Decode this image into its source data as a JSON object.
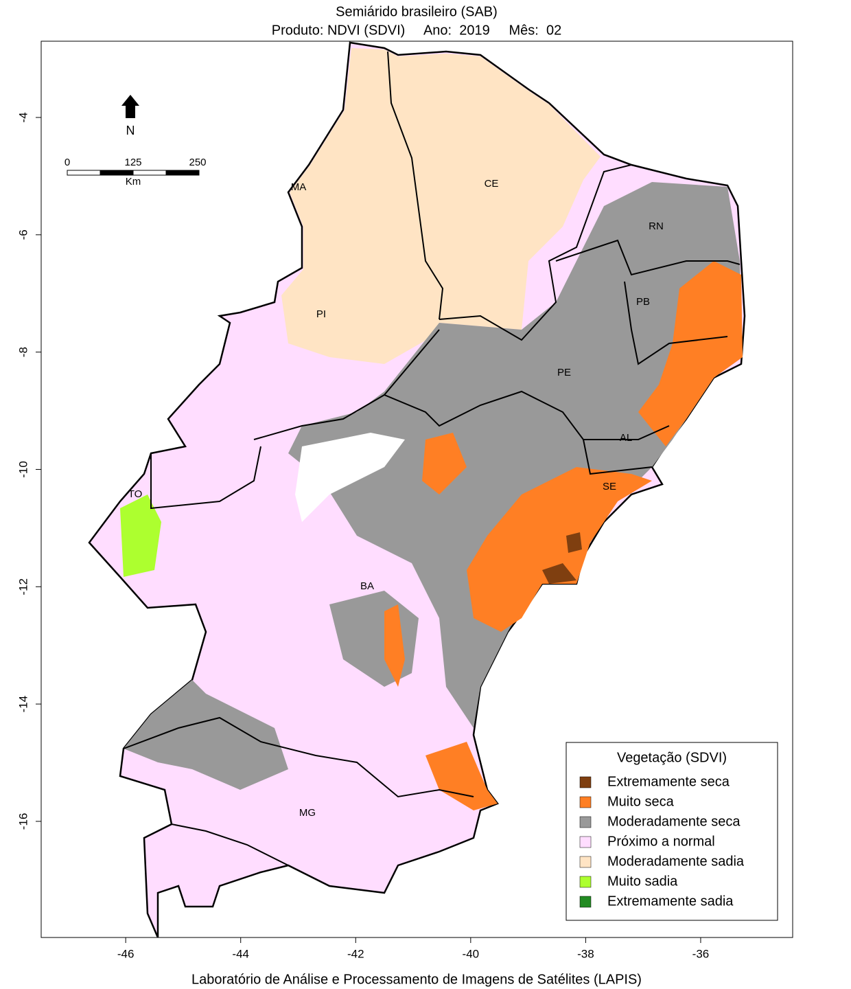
{
  "title": "Semiárido brasileiro (SAB)",
  "subtitle": "Produto: NDVI (SDVI)     Ano:  2019     Mês:  02",
  "xlim": [
    -47.47,
    -34.4
  ],
  "ylim": [
    -17.98,
    -2.7
  ],
  "xticks": [
    -46,
    -44,
    -42,
    -40,
    -38,
    -36
  ],
  "yticks": [
    -4,
    -6,
    -8,
    -10,
    -12,
    -14,
    -16
  ],
  "states": [
    "MA",
    "CE",
    "RN",
    "PB",
    "PI",
    "PE",
    "AL",
    "SE",
    "TO",
    "BA",
    "MG"
  ],
  "north": "N",
  "scalebar": {
    "labels": [
      0,
      125,
      250
    ],
    "unit": "Km"
  },
  "legend": {
    "title": "Vegetação (SDVI)",
    "items": [
      {
        "label": "Extremamente seca",
        "color": "#7f3f10"
      },
      {
        "label": "Muito seca",
        "color": "#ff7f24"
      },
      {
        "label": "Moderadamente seca",
        "color": "#999999"
      },
      {
        "label": "Próximo a normal",
        "color": "#ffddff"
      },
      {
        "label": "Moderadamente sadia",
        "color": "#ffe4c4"
      },
      {
        "label": "Muito sadia",
        "color": "#adff2f"
      },
      {
        "label": "Extremamente sadia",
        "color": "#228b22"
      }
    ]
  },
  "footer": "Laboratório de Análise e Processamento de Imagens de Satélites (LAPIS)"
}
